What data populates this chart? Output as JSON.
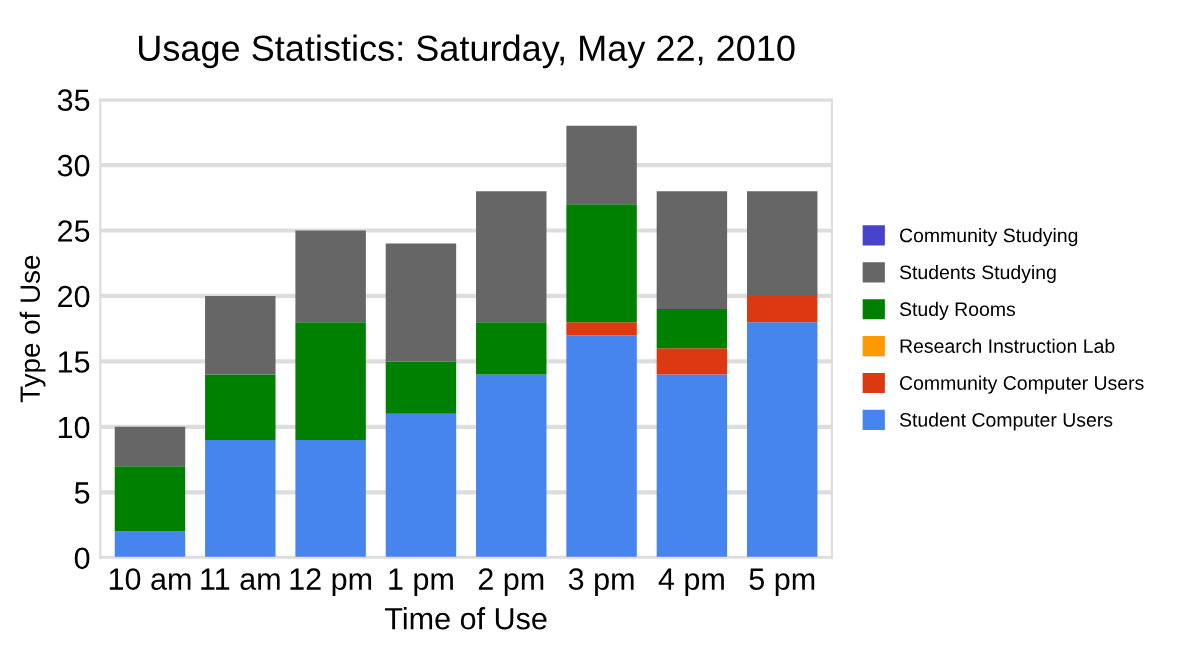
{
  "chart_data": {
    "type": "bar",
    "title": "Usage Statistics: Saturday, May 22, 2010",
    "xlabel": "Time of Use",
    "ylabel": "Type of Use",
    "categories": [
      "10 am",
      "11 am",
      "12 pm",
      "1 pm",
      "2 pm",
      "3 pm",
      "4 pm",
      "5 pm"
    ],
    "stacked": true,
    "ylim": [
      0,
      35
    ],
    "yticks": [
      0,
      5,
      10,
      15,
      20,
      25,
      30,
      35
    ],
    "grid": "y",
    "legend": "right",
    "series": [
      {
        "name": "Student Computer Users",
        "color": "#4684ee",
        "values": [
          2,
          9,
          9,
          11,
          14,
          17,
          14,
          18
        ]
      },
      {
        "name": "Community Computer Users",
        "color": "#dc3912",
        "values": [
          0,
          0,
          0,
          0,
          0,
          1,
          2,
          2
        ]
      },
      {
        "name": "Research Instruction Lab",
        "color": "#ff9900",
        "values": [
          0,
          0,
          0,
          0,
          0,
          0,
          0,
          0
        ]
      },
      {
        "name": "Study Rooms",
        "color": "#008000",
        "values": [
          5,
          5,
          9,
          4,
          4,
          9,
          3,
          0
        ]
      },
      {
        "name": "Students Studying",
        "color": "#666666",
        "values": [
          3,
          6,
          7,
          9,
          10,
          6,
          9,
          8
        ]
      },
      {
        "name": "Community Studying",
        "color": "#4942cc",
        "values": [
          0,
          0,
          0,
          0,
          0,
          0,
          0,
          0
        ]
      }
    ]
  }
}
